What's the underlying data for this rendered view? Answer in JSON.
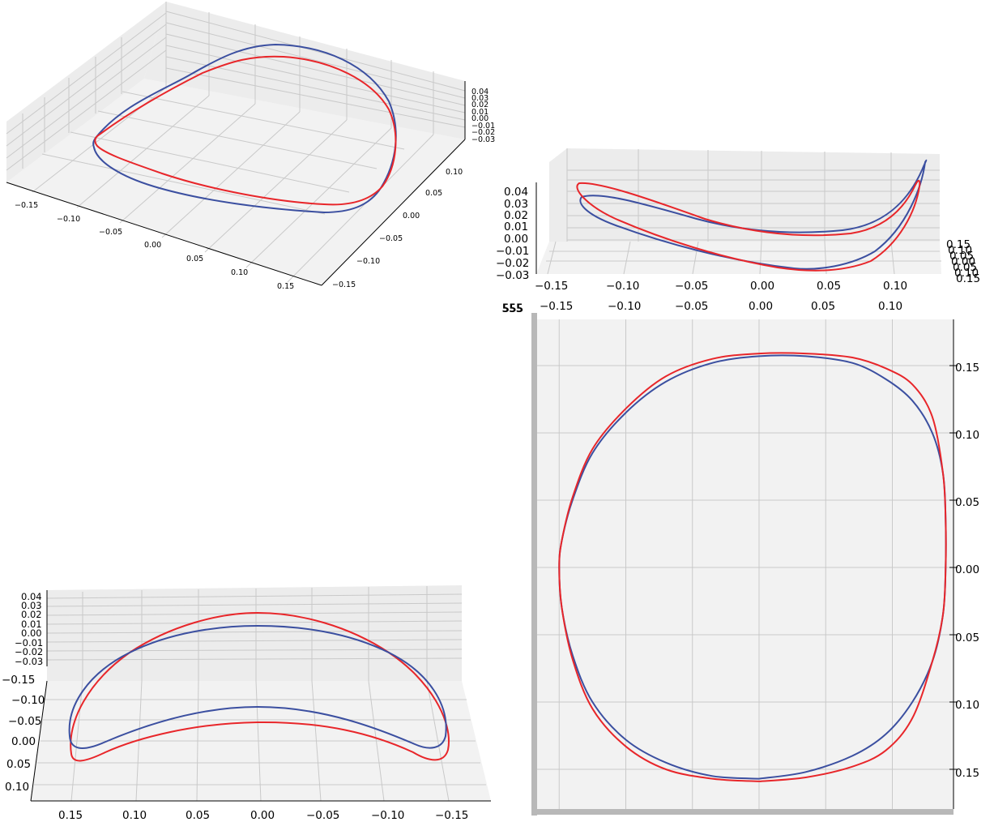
{
  "colors": {
    "series_blue": "#3b4fa0",
    "series_red": "#e8262a",
    "pane": "#f2f2f2",
    "grid": "#c9c9c9",
    "edge": "#b4b4b4"
  },
  "chart_data": [
    {
      "type": "line3d",
      "view": "oblique",
      "axes": {
        "x_ticks": [
          "−0.15",
          "−0.10",
          "−0.05",
          "0.00",
          "0.05",
          "0.10",
          "0.15"
        ],
        "y_ticks": [
          "0.10",
          "0.05",
          "0.00",
          "−0.05",
          "−0.10",
          "−0.15"
        ],
        "z_ticks": [
          "0.04",
          "0.03",
          "0.02",
          "0.01",
          "0.00",
          "−0.01",
          "−0.02",
          "−0.03"
        ]
      },
      "series": [
        {
          "color": "#3b4fa0"
        },
        {
          "color": "#e8262a"
        }
      ]
    },
    {
      "type": "line3d",
      "view": "side (x–z)",
      "axes": {
        "x_ticks": [
          "−0.15",
          "−0.10",
          "−0.05",
          "0.00",
          "0.05",
          "0.10"
        ],
        "z_ticks": [
          "0.04",
          "0.03",
          "0.02",
          "0.01",
          "0.00",
          "−0.01",
          "−0.02",
          "−0.03"
        ],
        "y_ticks": [
          "0.15",
          "0.10",
          "0.05",
          "0.00",
          "0.05",
          "0.10",
          "0.15"
        ]
      },
      "series": [
        {
          "color": "#3b4fa0"
        },
        {
          "color": "#e8262a"
        }
      ]
    },
    {
      "type": "line3d",
      "view": "top (x–y)",
      "axes": {
        "x_ticks": [
          "−0.15",
          "−0.10",
          "−0.05",
          "0.00",
          "0.05",
          "0.10"
        ],
        "y_ticks": [
          "0.15",
          "0.10",
          "0.05",
          "0.00",
          "0.05",
          "0.10",
          "0.15"
        ]
      },
      "x": [
        0.0,
        0.035,
        0.07,
        0.095,
        0.115,
        0.13,
        0.138,
        0.14,
        0.14,
        0.138,
        0.13,
        0.115,
        0.095,
        0.07,
        0.035,
        0.0,
        -0.035,
        -0.07,
        -0.1,
        -0.125,
        -0.14,
        -0.148,
        -0.15,
        -0.148,
        -0.14,
        -0.125,
        -0.1,
        -0.07,
        -0.035,
        0.0
      ],
      "series": [
        {
          "color": "#3b4fa0",
          "y": [
            -0.157,
            -0.152,
            -0.14,
            -0.124,
            -0.1,
            -0.07,
            -0.035,
            0.0,
            0.035,
            0.07,
            0.1,
            0.124,
            0.14,
            0.152,
            0.157,
            0.157,
            0.152,
            0.138,
            0.115,
            0.085,
            0.05,
            0.02,
            0.0,
            -0.03,
            -0.065,
            -0.1,
            -0.128,
            -0.145,
            -0.155,
            -0.157
          ]
        },
        {
          "color": "#e8262a",
          "y": [
            -0.159,
            -0.156,
            -0.148,
            -0.136,
            -0.112,
            -0.07,
            -0.035,
            0.0,
            0.035,
            0.07,
            0.112,
            0.136,
            0.148,
            0.156,
            0.159,
            0.159,
            0.155,
            0.142,
            0.118,
            0.088,
            0.052,
            0.02,
            0.0,
            -0.03,
            -0.068,
            -0.105,
            -0.133,
            -0.15,
            -0.157,
            -0.159
          ]
        }
      ]
    },
    {
      "type": "line3d",
      "view": "front (x–z)",
      "axes": {
        "x_ticks": [
          "0.15",
          "0.10",
          "0.05",
          "0.00",
          "−0.05",
          "−0.10",
          "−0.15"
        ],
        "z_ticks": [
          "0.04",
          "0.03",
          "0.02",
          "0.01",
          "0.00",
          "−0.01",
          "−0.02",
          "−0.03"
        ],
        "y_ticks": [
          "−0.15",
          "−0.10",
          "−0.05",
          "0.00",
          "0.05",
          "0.10"
        ]
      },
      "series": [
        {
          "color": "#3b4fa0"
        },
        {
          "color": "#e8262a"
        }
      ]
    }
  ]
}
